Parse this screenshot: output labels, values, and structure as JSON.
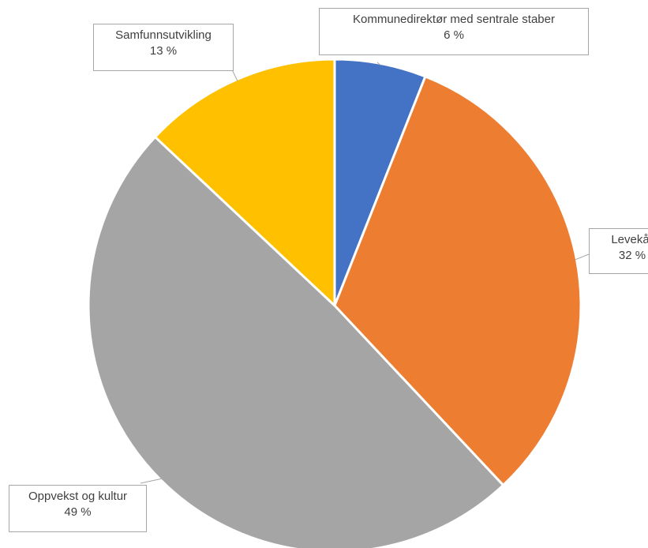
{
  "chart_data": {
    "type": "pie",
    "start_angle_deg": 0,
    "slices": [
      {
        "label": "Kommunedirektør med sentrale staber",
        "value": 6,
        "display": "6 %",
        "color": "#4472C4"
      },
      {
        "label": "Levekår",
        "value": 32,
        "display": "32 %",
        "color": "#ED7D31"
      },
      {
        "label": "Oppvekst og kultur",
        "value": 49,
        "display": "49 %",
        "color": "#A5A5A5"
      },
      {
        "label": "Samfunnsutvikling",
        "value": 13,
        "display": "13 %",
        "color": "#FFC000"
      }
    ],
    "legend": "none",
    "data_labels": "callouts"
  }
}
